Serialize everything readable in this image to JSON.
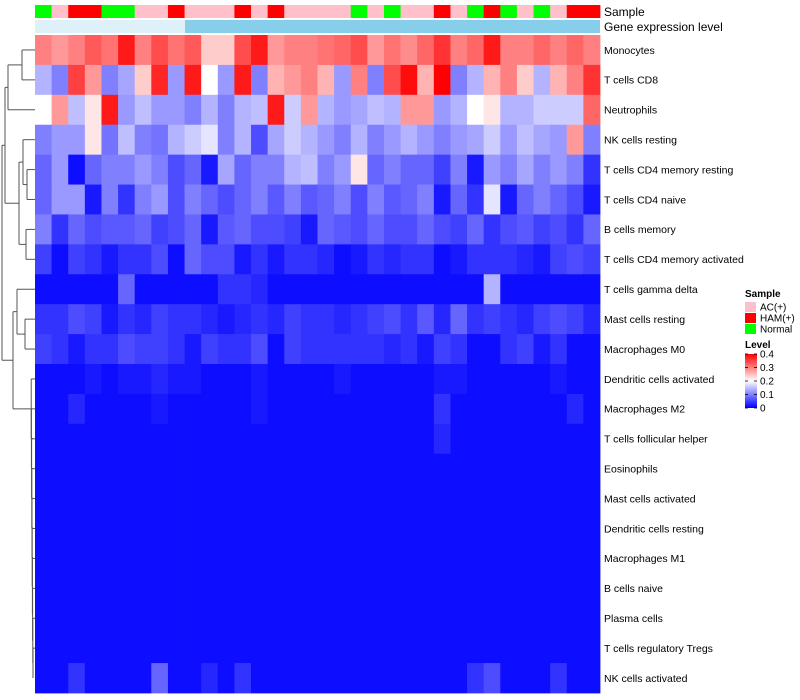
{
  "chart_data": {
    "type": "heatmap",
    "rows": [
      "Monocytes",
      "T cells CD8",
      "Neutrophils",
      "NK cells resting",
      "T cells CD4 memory resting",
      "T cells CD4 naive",
      "B cells memory",
      "T cells CD4 memory activated",
      "T cells gamma delta",
      "Mast cells resting",
      "Macrophages M0",
      "Dendritic cells activated",
      "Macrophages M2",
      "T cells follicular helper",
      "Eosinophils",
      "Mast cells activated",
      "Dendritic cells resting",
      "Macrophages M1",
      "B cells naive",
      "Plasma cells",
      "T cells regulatory  Tregs",
      "NK cells activated"
    ],
    "sample_groups": [
      "Normal",
      "AC(+)",
      "HAM(+)",
      "HAM(+)",
      "Normal",
      "Normal",
      "AC(+)",
      "AC(+)",
      "HAM(+)",
      "AC(+)",
      "AC(+)",
      "AC(+)",
      "HAM(+)",
      "AC(+)",
      "HAM(+)",
      "AC(+)",
      "AC(+)",
      "AC(+)",
      "AC(+)",
      "Normal",
      "AC(+)",
      "Normal",
      "AC(+)",
      "AC(+)",
      "HAM(+)",
      "AC(+)",
      "Normal",
      "HAM(+)",
      "Normal",
      "AC(+)",
      "Normal",
      "AC(+)",
      "HAM(+)",
      "HAM(+)"
    ],
    "values": [
      [
        0.3,
        0.28,
        0.3,
        0.33,
        0.31,
        0.38,
        0.3,
        0.34,
        0.31,
        0.33,
        0.24,
        0.24,
        0.34,
        0.38,
        0.28,
        0.3,
        0.3,
        0.31,
        0.32,
        0.34,
        0.28,
        0.31,
        0.29,
        0.32,
        0.36,
        0.3,
        0.32,
        0.38,
        0.3,
        0.3,
        0.32,
        0.3,
        0.32,
        0.3
      ],
      [
        0.14,
        0.1,
        0.35,
        0.28,
        0.1,
        0.13,
        0.24,
        0.37,
        0.12,
        0.38,
        0.2,
        0.12,
        0.38,
        0.1,
        0.26,
        0.28,
        0.3,
        0.26,
        0.12,
        0.3,
        0.1,
        0.34,
        0.39,
        0.26,
        0.4,
        0.1,
        0.14,
        0.26,
        0.3,
        0.24,
        0.14,
        0.26,
        0.3,
        0.36
      ],
      [
        0.2,
        0.28,
        0.15,
        0.22,
        0.38,
        0.12,
        0.15,
        0.12,
        0.12,
        0.1,
        0.14,
        0.1,
        0.14,
        0.15,
        0.38,
        0.16,
        0.28,
        0.14,
        0.12,
        0.13,
        0.15,
        0.14,
        0.28,
        0.28,
        0.12,
        0.14,
        0.2,
        0.22,
        0.14,
        0.14,
        0.16,
        0.16,
        0.16,
        0.32
      ],
      [
        0.1,
        0.12,
        0.12,
        0.22,
        0.09,
        0.15,
        0.1,
        0.09,
        0.14,
        0.16,
        0.18,
        0.1,
        0.14,
        0.06,
        0.13,
        0.16,
        0.14,
        0.12,
        0.1,
        0.14,
        0.1,
        0.12,
        0.14,
        0.12,
        0.1,
        0.12,
        0.13,
        0.16,
        0.12,
        0.15,
        0.13,
        0.12,
        0.28,
        0.1
      ],
      [
        0.08,
        0.12,
        0.01,
        0.08,
        0.1,
        0.1,
        0.12,
        0.1,
        0.06,
        0.08,
        0.02,
        0.13,
        0.08,
        0.1,
        0.1,
        0.14,
        0.15,
        0.1,
        0.12,
        0.22,
        0.08,
        0.1,
        0.08,
        0.08,
        0.05,
        0.1,
        0.02,
        0.12,
        0.1,
        0.13,
        0.1,
        0.12,
        0.1,
        0.04
      ],
      [
        0.08,
        0.12,
        0.12,
        0.02,
        0.1,
        0.04,
        0.1,
        0.12,
        0.06,
        0.1,
        0.08,
        0.06,
        0.08,
        0.1,
        0.07,
        0.1,
        0.07,
        0.08,
        0.1,
        0.06,
        0.1,
        0.07,
        0.08,
        0.1,
        0.02,
        0.08,
        0.04,
        0.18,
        0.02,
        0.08,
        0.1,
        0.08,
        0.06,
        0.02
      ],
      [
        0.1,
        0.04,
        0.08,
        0.06,
        0.07,
        0.07,
        0.08,
        0.05,
        0.06,
        0.08,
        0.02,
        0.07,
        0.08,
        0.06,
        0.06,
        0.05,
        0.02,
        0.08,
        0.07,
        0.06,
        0.08,
        0.06,
        0.06,
        0.08,
        0.06,
        0.05,
        0.08,
        0.04,
        0.06,
        0.07,
        0.05,
        0.06,
        0.04,
        0.08
      ],
      [
        0.05,
        0.01,
        0.05,
        0.04,
        0.02,
        0.04,
        0.04,
        0.06,
        0.01,
        0.08,
        0.06,
        0.06,
        0.02,
        0.04,
        0.02,
        0.04,
        0.04,
        0.03,
        0.01,
        0.02,
        0.04,
        0.03,
        0.04,
        0.04,
        0.01,
        0.02,
        0.04,
        0.04,
        0.04,
        0.03,
        0.02,
        0.05,
        0.06,
        0.05
      ],
      [
        0.01,
        0.01,
        0.01,
        0.01,
        0.01,
        0.08,
        0.01,
        0.01,
        0.01,
        0.01,
        0.01,
        0.04,
        0.04,
        0.03,
        0.01,
        0.01,
        0.01,
        0.01,
        0.01,
        0.01,
        0.01,
        0.01,
        0.01,
        0.01,
        0.01,
        0.01,
        0.01,
        0.14,
        0.01,
        0.01,
        0.01,
        0.01,
        0.01,
        0.01
      ],
      [
        0.04,
        0.04,
        0.06,
        0.05,
        0.02,
        0.04,
        0.03,
        0.05,
        0.04,
        0.04,
        0.03,
        0.02,
        0.03,
        0.04,
        0.03,
        0.05,
        0.04,
        0.04,
        0.03,
        0.04,
        0.05,
        0.06,
        0.04,
        0.07,
        0.03,
        0.08,
        0.04,
        0.05,
        0.04,
        0.03,
        0.05,
        0.06,
        0.05,
        0.03
      ],
      [
        0.05,
        0.04,
        0.02,
        0.04,
        0.04,
        0.06,
        0.05,
        0.05,
        0.04,
        0.02,
        0.05,
        0.04,
        0.04,
        0.06,
        0.01,
        0.05,
        0.04,
        0.04,
        0.04,
        0.04,
        0.04,
        0.03,
        0.04,
        0.02,
        0.05,
        0.04,
        0.01,
        0.01,
        0.04,
        0.05,
        0.02,
        0.04,
        0.01,
        0.01
      ],
      [
        0.01,
        0.01,
        0.01,
        0.02,
        0.01,
        0.02,
        0.02,
        0.03,
        0.02,
        0.02,
        0.01,
        0.01,
        0.01,
        0.02,
        0.01,
        0.01,
        0.01,
        0.01,
        0.02,
        0.01,
        0.01,
        0.01,
        0.01,
        0.01,
        0.02,
        0.02,
        0.01,
        0.01,
        0.01,
        0.01,
        0.01,
        0.02,
        0.01,
        0.01
      ],
      [
        0.01,
        0.01,
        0.03,
        0.01,
        0.01,
        0.01,
        0.01,
        0.02,
        0.01,
        0.01,
        0.01,
        0.01,
        0.01,
        0.02,
        0.01,
        0.01,
        0.01,
        0.01,
        0.01,
        0.01,
        0.01,
        0.01,
        0.01,
        0.01,
        0.04,
        0.01,
        0.01,
        0.01,
        0.01,
        0.01,
        0.01,
        0.01,
        0.03,
        0.01
      ],
      [
        0.01,
        0.01,
        0.01,
        0.01,
        0.01,
        0.01,
        0.01,
        0.01,
        0.01,
        0.01,
        0.01,
        0.01,
        0.01,
        0.01,
        0.01,
        0.01,
        0.01,
        0.01,
        0.01,
        0.01,
        0.01,
        0.01,
        0.01,
        0.01,
        0.03,
        0.01,
        0.01,
        0.01,
        0.01,
        0.01,
        0.01,
        0.01,
        0.01,
        0.01
      ],
      [
        0.01,
        0.01,
        0.01,
        0.01,
        0.01,
        0.01,
        0.01,
        0.01,
        0.01,
        0.01,
        0.01,
        0.01,
        0.01,
        0.01,
        0.01,
        0.01,
        0.01,
        0.01,
        0.01,
        0.01,
        0.01,
        0.01,
        0.01,
        0.01,
        0.01,
        0.01,
        0.01,
        0.01,
        0.01,
        0.01,
        0.01,
        0.01,
        0.01,
        0.01
      ],
      [
        0.01,
        0.01,
        0.01,
        0.01,
        0.01,
        0.01,
        0.01,
        0.01,
        0.01,
        0.01,
        0.01,
        0.01,
        0.01,
        0.01,
        0.01,
        0.01,
        0.01,
        0.01,
        0.01,
        0.01,
        0.01,
        0.01,
        0.01,
        0.01,
        0.01,
        0.01,
        0.01,
        0.01,
        0.01,
        0.01,
        0.01,
        0.01,
        0.01,
        0.01
      ],
      [
        0.01,
        0.01,
        0.01,
        0.01,
        0.01,
        0.01,
        0.01,
        0.01,
        0.01,
        0.01,
        0.01,
        0.01,
        0.01,
        0.01,
        0.01,
        0.01,
        0.01,
        0.01,
        0.01,
        0.01,
        0.01,
        0.01,
        0.01,
        0.01,
        0.01,
        0.01,
        0.01,
        0.01,
        0.01,
        0.01,
        0.01,
        0.01,
        0.01,
        0.01
      ],
      [
        0.01,
        0.01,
        0.01,
        0.01,
        0.01,
        0.01,
        0.01,
        0.01,
        0.01,
        0.01,
        0.01,
        0.01,
        0.01,
        0.01,
        0.01,
        0.01,
        0.01,
        0.01,
        0.01,
        0.01,
        0.01,
        0.01,
        0.01,
        0.01,
        0.01,
        0.01,
        0.01,
        0.01,
        0.01,
        0.01,
        0.01,
        0.01,
        0.01,
        0.01
      ],
      [
        0.01,
        0.01,
        0.01,
        0.01,
        0.01,
        0.01,
        0.01,
        0.01,
        0.01,
        0.01,
        0.01,
        0.01,
        0.01,
        0.01,
        0.01,
        0.01,
        0.01,
        0.01,
        0.01,
        0.01,
        0.01,
        0.01,
        0.01,
        0.01,
        0.01,
        0.01,
        0.01,
        0.01,
        0.01,
        0.01,
        0.01,
        0.01,
        0.01,
        0.01
      ],
      [
        0.01,
        0.01,
        0.01,
        0.01,
        0.01,
        0.01,
        0.01,
        0.01,
        0.01,
        0.01,
        0.01,
        0.01,
        0.01,
        0.01,
        0.01,
        0.01,
        0.01,
        0.01,
        0.01,
        0.01,
        0.01,
        0.01,
        0.01,
        0.01,
        0.01,
        0.01,
        0.01,
        0.01,
        0.01,
        0.01,
        0.01,
        0.01,
        0.01,
        0.01
      ],
      [
        0.01,
        0.01,
        0.01,
        0.01,
        0.01,
        0.01,
        0.01,
        0.01,
        0.01,
        0.01,
        0.01,
        0.01,
        0.01,
        0.01,
        0.01,
        0.01,
        0.01,
        0.01,
        0.01,
        0.01,
        0.01,
        0.01,
        0.01,
        0.01,
        0.01,
        0.01,
        0.01,
        0.01,
        0.01,
        0.01,
        0.01,
        0.01,
        0.01,
        0.01
      ],
      [
        0.01,
        0.01,
        0.04,
        0.01,
        0.01,
        0.01,
        0.01,
        0.08,
        0.01,
        0.01,
        0.03,
        0.01,
        0.04,
        0.01,
        0.01,
        0.01,
        0.01,
        0.01,
        0.01,
        0.01,
        0.01,
        0.01,
        0.01,
        0.01,
        0.01,
        0.01,
        0.04,
        0.06,
        0.01,
        0.01,
        0.01,
        0.04,
        0.01,
        0.01
      ]
    ],
    "annotations": {
      "sample_title": "Sample",
      "expression_title": "Gene expression level"
    },
    "legend": {
      "sample": {
        "title": "Sample",
        "entries": [
          "AC(+)",
          "HAM(+)",
          "Normal"
        ]
      },
      "level": {
        "title": "Level",
        "ticks": [
          "0.4",
          "0.3",
          "0.2",
          "0.1",
          "0"
        ],
        "range": [
          0,
          0.4
        ]
      }
    },
    "colors": {
      "low": "#0000ff",
      "mid": "#ffffff",
      "high": "#ff0000",
      "group": {
        "AC(+)": "#ffc0cb",
        "HAM(+)": "#ff0000",
        "Normal": "#00ff00"
      },
      "expression_bar": "#87ceeb",
      "expression_bar_light": "#dff1f8"
    }
  }
}
